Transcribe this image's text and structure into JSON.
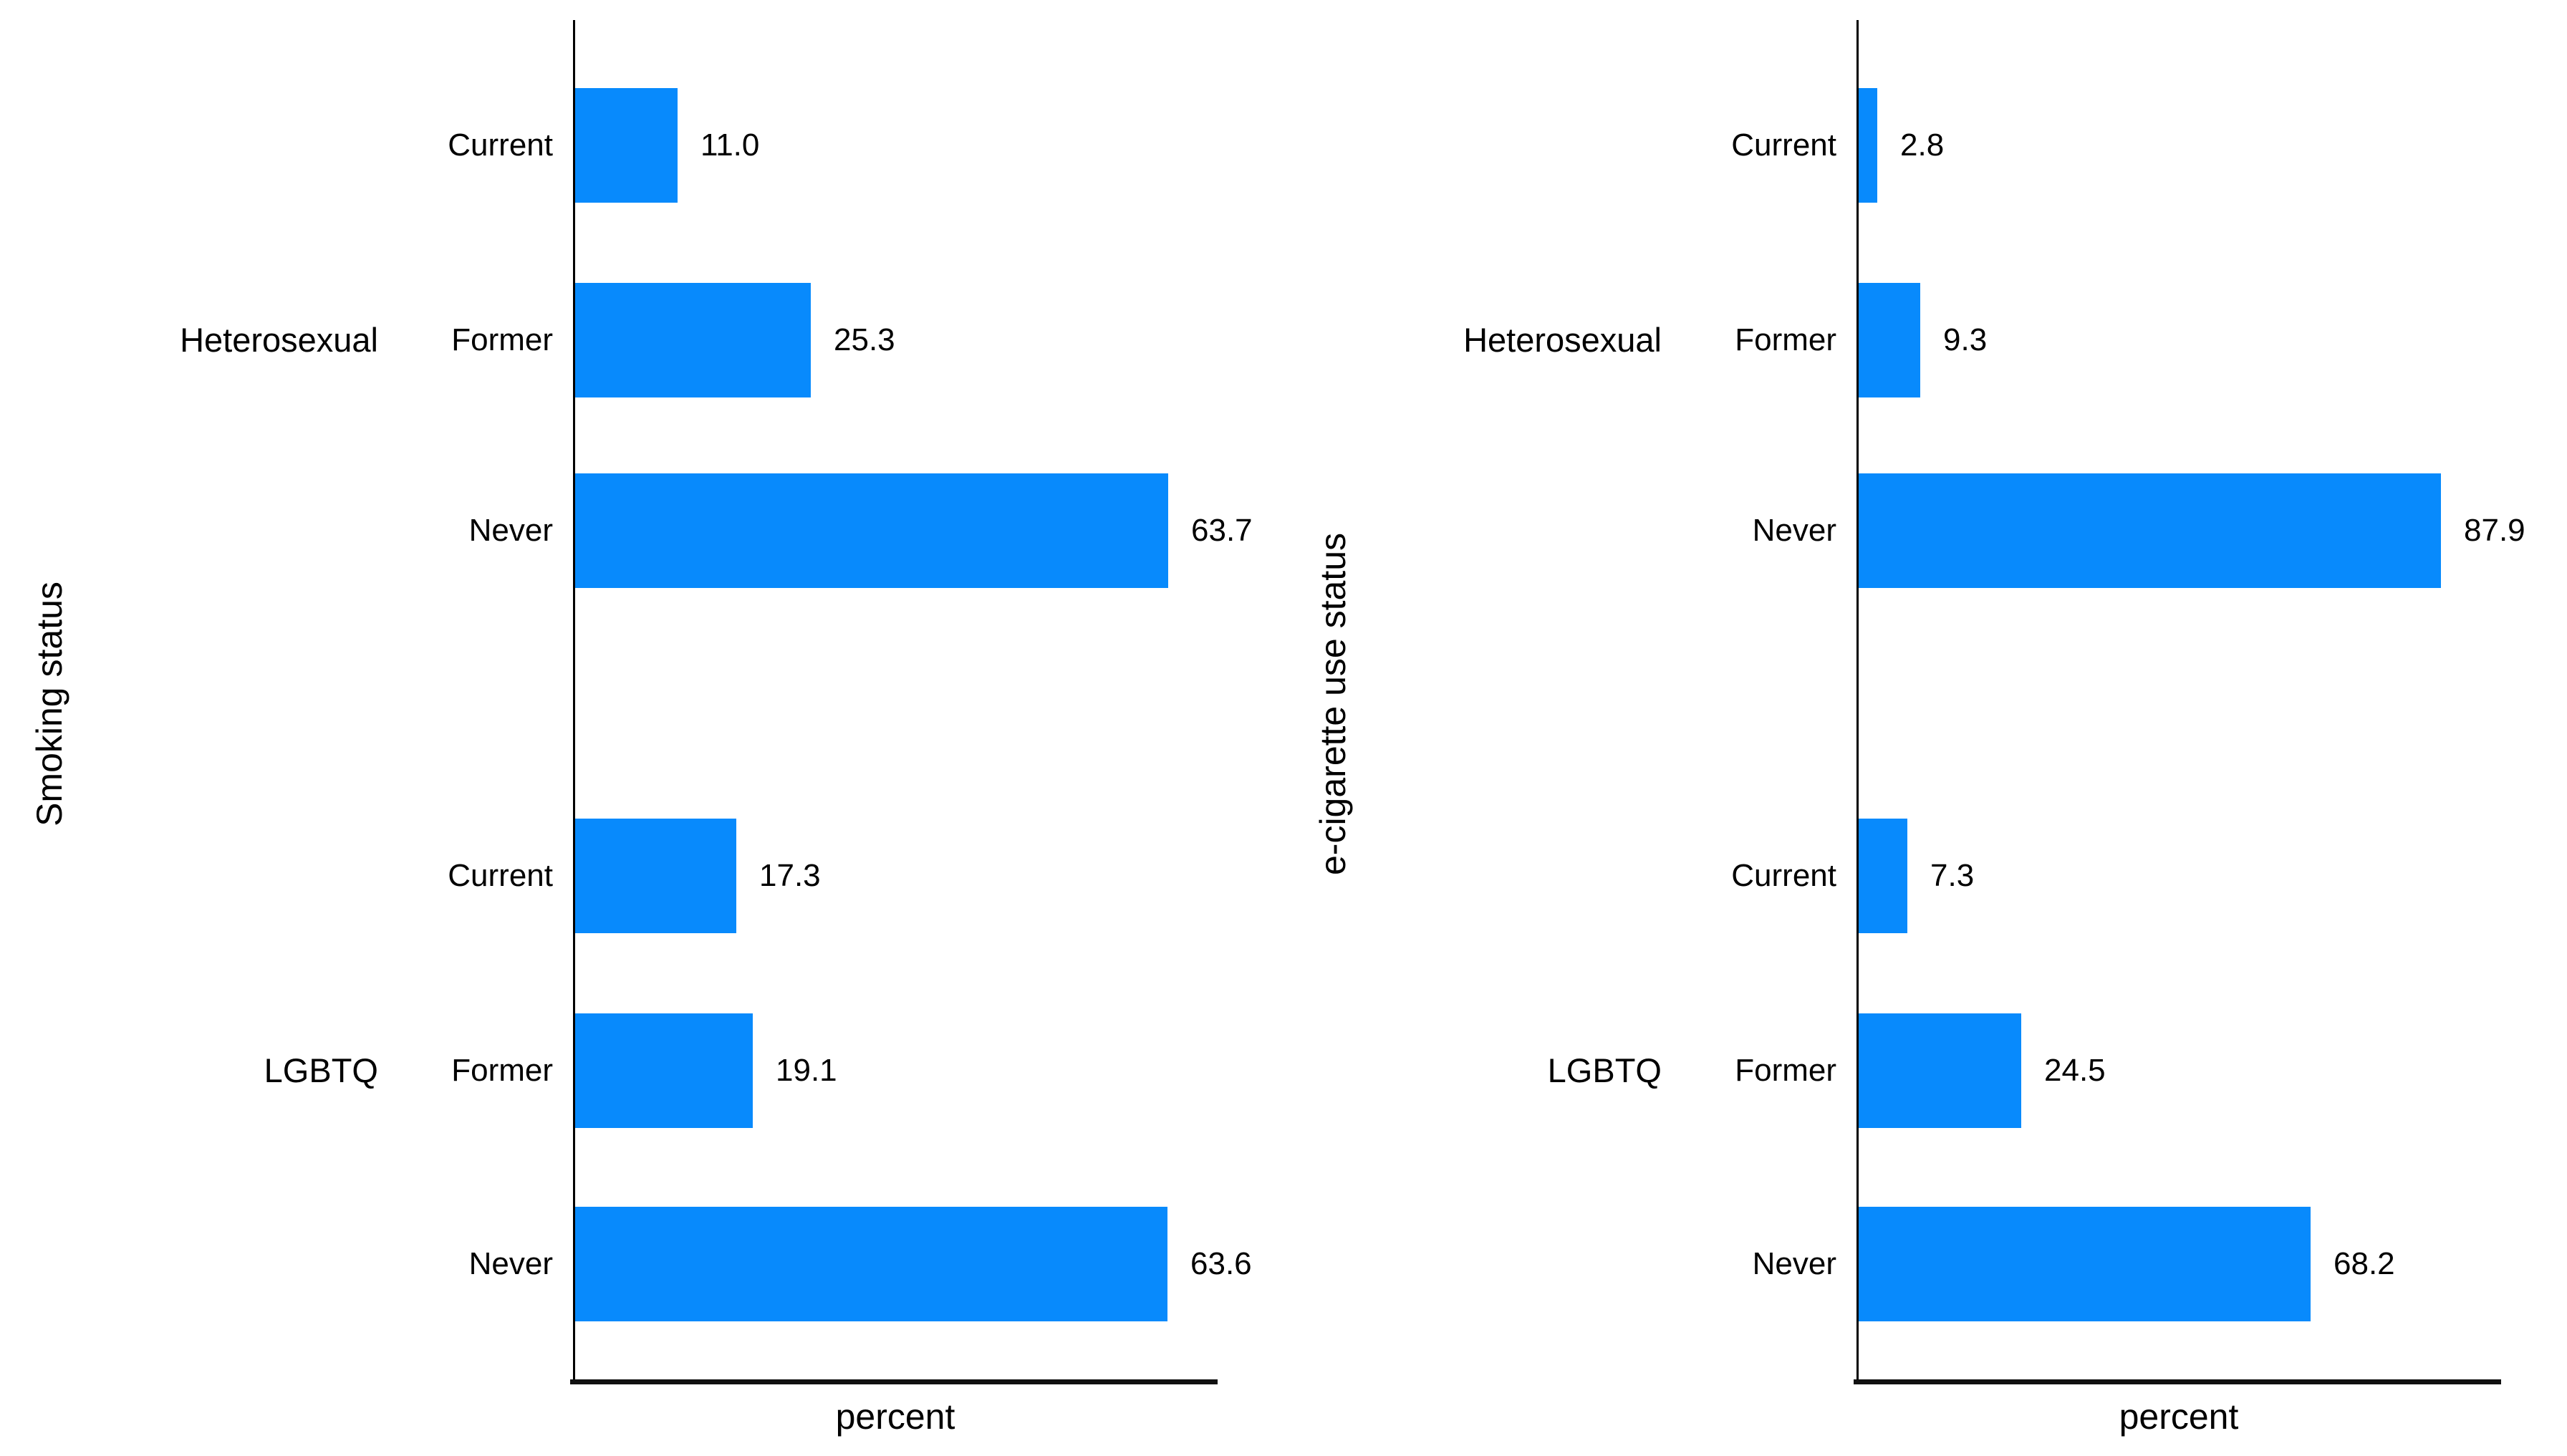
{
  "figure": {
    "background": "#ffffff",
    "bar_color": "#088AFC",
    "axis_color": "#000000",
    "text_color": "#000000"
  },
  "chart_data": [
    {
      "type": "bar",
      "orientation": "horizontal",
      "ylabel": "Smoking status",
      "xlabel": "percent",
      "xlim": [
        0,
        69
      ],
      "grid": false,
      "legend": false,
      "value_labels_shown": true,
      "groups": [
        {
          "label": "Heterosexual",
          "categories": [
            "Current",
            "Former",
            "Never"
          ],
          "values": [
            11.0,
            25.3,
            63.7
          ],
          "value_labels": [
            "11.0",
            "25.3",
            "63.7"
          ]
        },
        {
          "label": "LGBTQ",
          "categories": [
            "Current",
            "Former",
            "Never"
          ],
          "values": [
            17.3,
            19.1,
            63.6
          ],
          "value_labels": [
            "17.3",
            "19.1",
            "63.6"
          ]
        }
      ]
    },
    {
      "type": "bar",
      "orientation": "horizontal",
      "ylabel": "e-cigarette use status",
      "xlabel": "percent",
      "xlim": [
        0,
        97
      ],
      "grid": false,
      "legend": false,
      "value_labels_shown": true,
      "groups": [
        {
          "label": "Heterosexual",
          "categories": [
            "Current",
            "Former",
            "Never"
          ],
          "values": [
            2.8,
            9.3,
            87.9
          ],
          "value_labels": [
            "2.8",
            "9.3",
            "87.9"
          ]
        },
        {
          "label": "LGBTQ",
          "categories": [
            "Current",
            "Former",
            "Never"
          ],
          "values": [
            7.3,
            24.5,
            68.2
          ],
          "value_labels": [
            "7.3",
            "24.5",
            "68.2"
          ]
        }
      ]
    }
  ]
}
